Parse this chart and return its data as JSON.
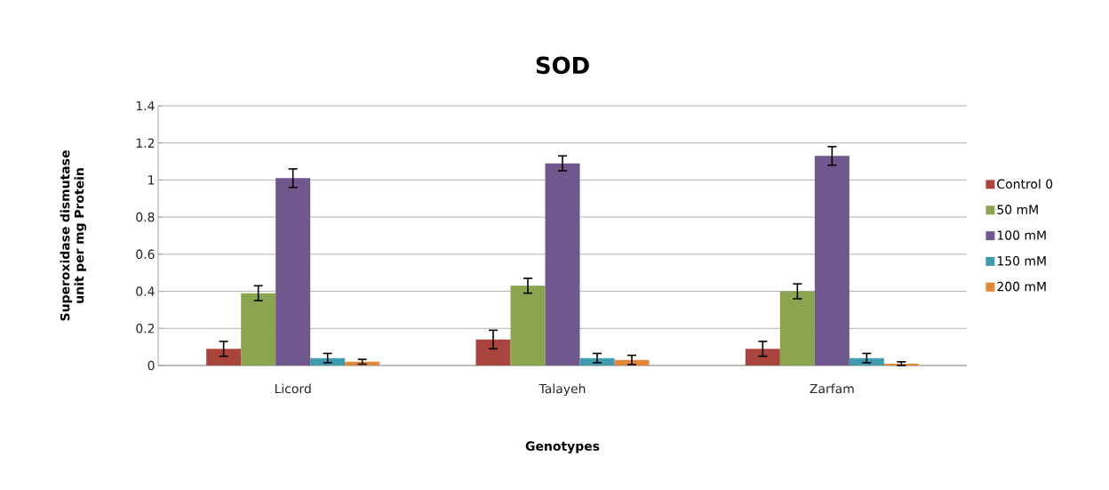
{
  "chart_data": {
    "type": "bar",
    "title": "SOD",
    "xlabel": "Genotypes",
    "ylabel": "Superoxidase dismutase unit per mg Protein",
    "categories": [
      "Licord",
      "Talayeh",
      "Zarfam"
    ],
    "series": [
      {
        "name": "Control 0",
        "color": "#a9443f",
        "values": [
          0.09,
          0.14,
          0.09
        ],
        "errors": [
          0.04,
          0.05,
          0.04
        ]
      },
      {
        "name": "50 mM",
        "color": "#8aa54e",
        "values": [
          0.39,
          0.43,
          0.4
        ],
        "errors": [
          0.04,
          0.04,
          0.04
        ]
      },
      {
        "name": "100 mM",
        "color": "#70578e",
        "values": [
          1.01,
          1.09,
          1.13
        ],
        "errors": [
          0.05,
          0.04,
          0.05
        ]
      },
      {
        "name": "150 mM",
        "color": "#3f9ab0",
        "values": [
          0.04,
          0.04,
          0.04
        ],
        "errors": [
          0.025,
          0.025,
          0.025
        ]
      },
      {
        "name": "200 mM",
        "color": "#e0883a",
        "values": [
          0.02,
          0.03,
          0.01
        ],
        "errors": [
          0.013,
          0.025,
          0.01
        ]
      }
    ],
    "ylim": [
      0,
      1.4
    ],
    "yticks": [
      0,
      0.2,
      0.4,
      0.6,
      0.8,
      1,
      1.2,
      1.4
    ],
    "grid": "y",
    "legend": "right"
  }
}
